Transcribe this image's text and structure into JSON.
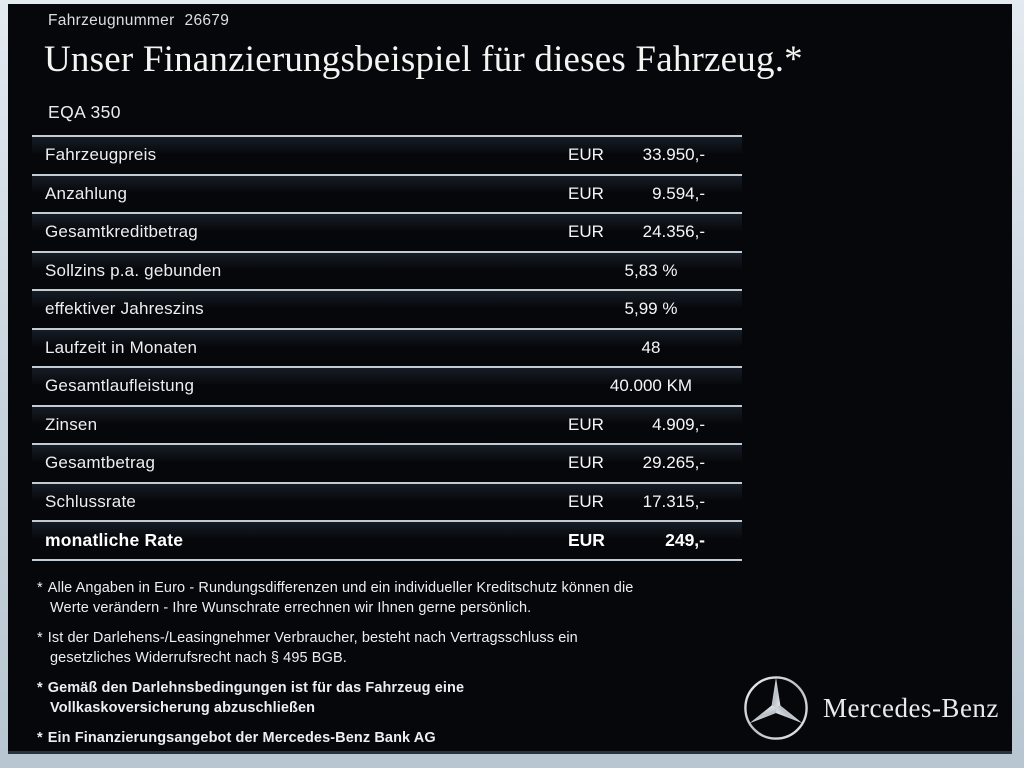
{
  "header": {
    "vehicle_number_label": "Fahrzeugnummer",
    "vehicle_number": "26679",
    "title": "Unser Finanzierungsbeispiel für dieses Fahrzeug.*",
    "model": "EQA 350"
  },
  "finance_table": {
    "rows": [
      {
        "label": "Fahrzeugpreis",
        "currency": "EUR",
        "value": "33.950,-",
        "centered": false,
        "bold": false
      },
      {
        "label": "Anzahlung",
        "currency": "EUR",
        "value": "9.594,-",
        "centered": false,
        "bold": false
      },
      {
        "label": "Gesamtkreditbetrag",
        "currency": "EUR",
        "value": "24.356,-",
        "centered": false,
        "bold": false
      },
      {
        "label": "Sollzins p.a. gebunden",
        "currency": "",
        "value": "5,83 %",
        "centered": true,
        "bold": false
      },
      {
        "label": "effektiver Jahreszins",
        "currency": "",
        "value": "5,99 %",
        "centered": true,
        "bold": false
      },
      {
        "label": "Laufzeit in Monaten",
        "currency": "",
        "value": "48",
        "centered": true,
        "bold": false
      },
      {
        "label": "Gesamtlaufleistung",
        "currency": "",
        "value": "40.000 KM",
        "centered": true,
        "bold": false
      },
      {
        "label": "Zinsen",
        "currency": "EUR",
        "value": "4.909,-",
        "centered": false,
        "bold": false
      },
      {
        "label": "Gesamtbetrag",
        "currency": "EUR",
        "value": "29.265,-",
        "centered": false,
        "bold": false
      },
      {
        "label": "Schlussrate",
        "currency": "EUR",
        "value": "17.315,-",
        "centered": false,
        "bold": false
      },
      {
        "label": "monatliche Rate",
        "currency": "EUR",
        "value": "249,-",
        "centered": false,
        "bold": true
      }
    ]
  },
  "footnotes": [
    {
      "marker": "*",
      "bold": false,
      "lines": [
        "Alle Angaben in Euro - Rundungsdifferenzen und ein individueller Kreditschutz können die",
        "Werte verändern - Ihre Wunschrate errechnen wir Ihnen gerne persönlich."
      ]
    },
    {
      "marker": "*",
      "bold": false,
      "lines": [
        "Ist der Darlehens-/Leasingnehmer Verbraucher, besteht nach Vertragsschluss ein",
        "gesetzliches Widerrufsrecht nach § 495 BGB."
      ]
    },
    {
      "marker": "*",
      "bold": true,
      "lines": [
        "Gemäß den Darlehnsbedingungen ist für das Fahrzeug eine",
        "Vollkaskoversicherung abzuschließen"
      ]
    },
    {
      "marker": "*",
      "bold": true,
      "lines": [
        "Ein Finanzierungsangebot der Mercedes-Benz Bank AG"
      ]
    }
  ],
  "brand": {
    "logo": "mercedes-star-icon",
    "wordmark": "Mercedes-Benz"
  },
  "colors": {
    "panel_background": "#06070a",
    "frame_background": "#c6d2dc",
    "divider": "#c3ccd4",
    "text": "#eceef0",
    "silver": "#d7dbe0"
  }
}
